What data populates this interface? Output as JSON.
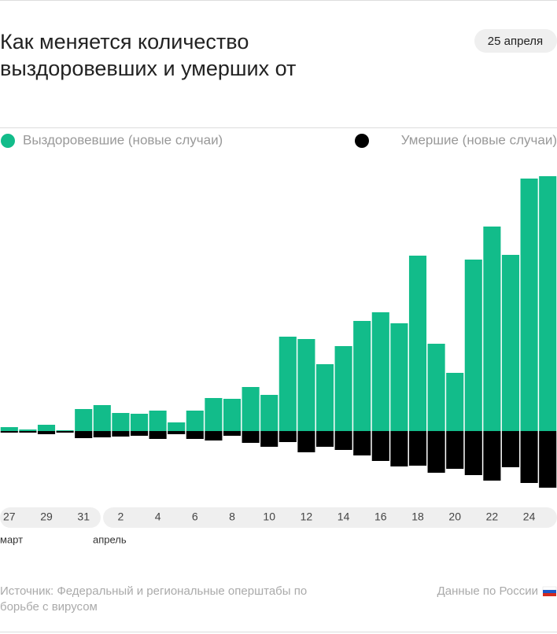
{
  "chart_data": {
    "type": "diverging-bar",
    "title": [
      "Как меняется количество",
      "выздоровевших и умерших от"
    ],
    "date": "25 апреля",
    "categories": [
      "27",
      null,
      "29",
      null,
      "31",
      null,
      "2",
      null,
      "4",
      null,
      "6",
      null,
      "8",
      null,
      "10",
      null,
      "12",
      null,
      "14",
      null,
      "16",
      null,
      "18",
      null,
      "20",
      null,
      "22",
      null,
      "24",
      null
    ],
    "months": [
      "март",
      "апрель"
    ],
    "series": [
      {
        "name": "Выздоровевшие (новые случаи)",
        "color": "#12bc8a",
        "values": [
          5,
          2,
          8,
          1,
          28,
          33,
          23,
          22,
          26,
          11,
          26,
          42,
          41,
          56,
          46,
          120,
          117,
          85,
          108,
          140,
          151,
          137,
          223,
          111,
          74,
          218,
          260,
          224,
          321,
          324
        ]
      },
      {
        "name": "Умершие (новые случаи)",
        "color": "#000000",
        "values": [
          -2,
          -2,
          -4,
          -2,
          -9,
          -8,
          -7,
          -6,
          -10,
          -4,
          -10,
          -12,
          -6,
          -15,
          -20,
          -14,
          -27,
          -20,
          -24,
          -31,
          -38,
          -45,
          -44,
          -53,
          -48,
          -56,
          -63,
          -46,
          -66,
          -72
        ]
      }
    ],
    "ylim": [
      -80,
      330
    ],
    "source": [
      "Источник: Федеральный и региональные оперштабы по",
      "борьбе с вирусом"
    ],
    "note": "Данные по России"
  }
}
